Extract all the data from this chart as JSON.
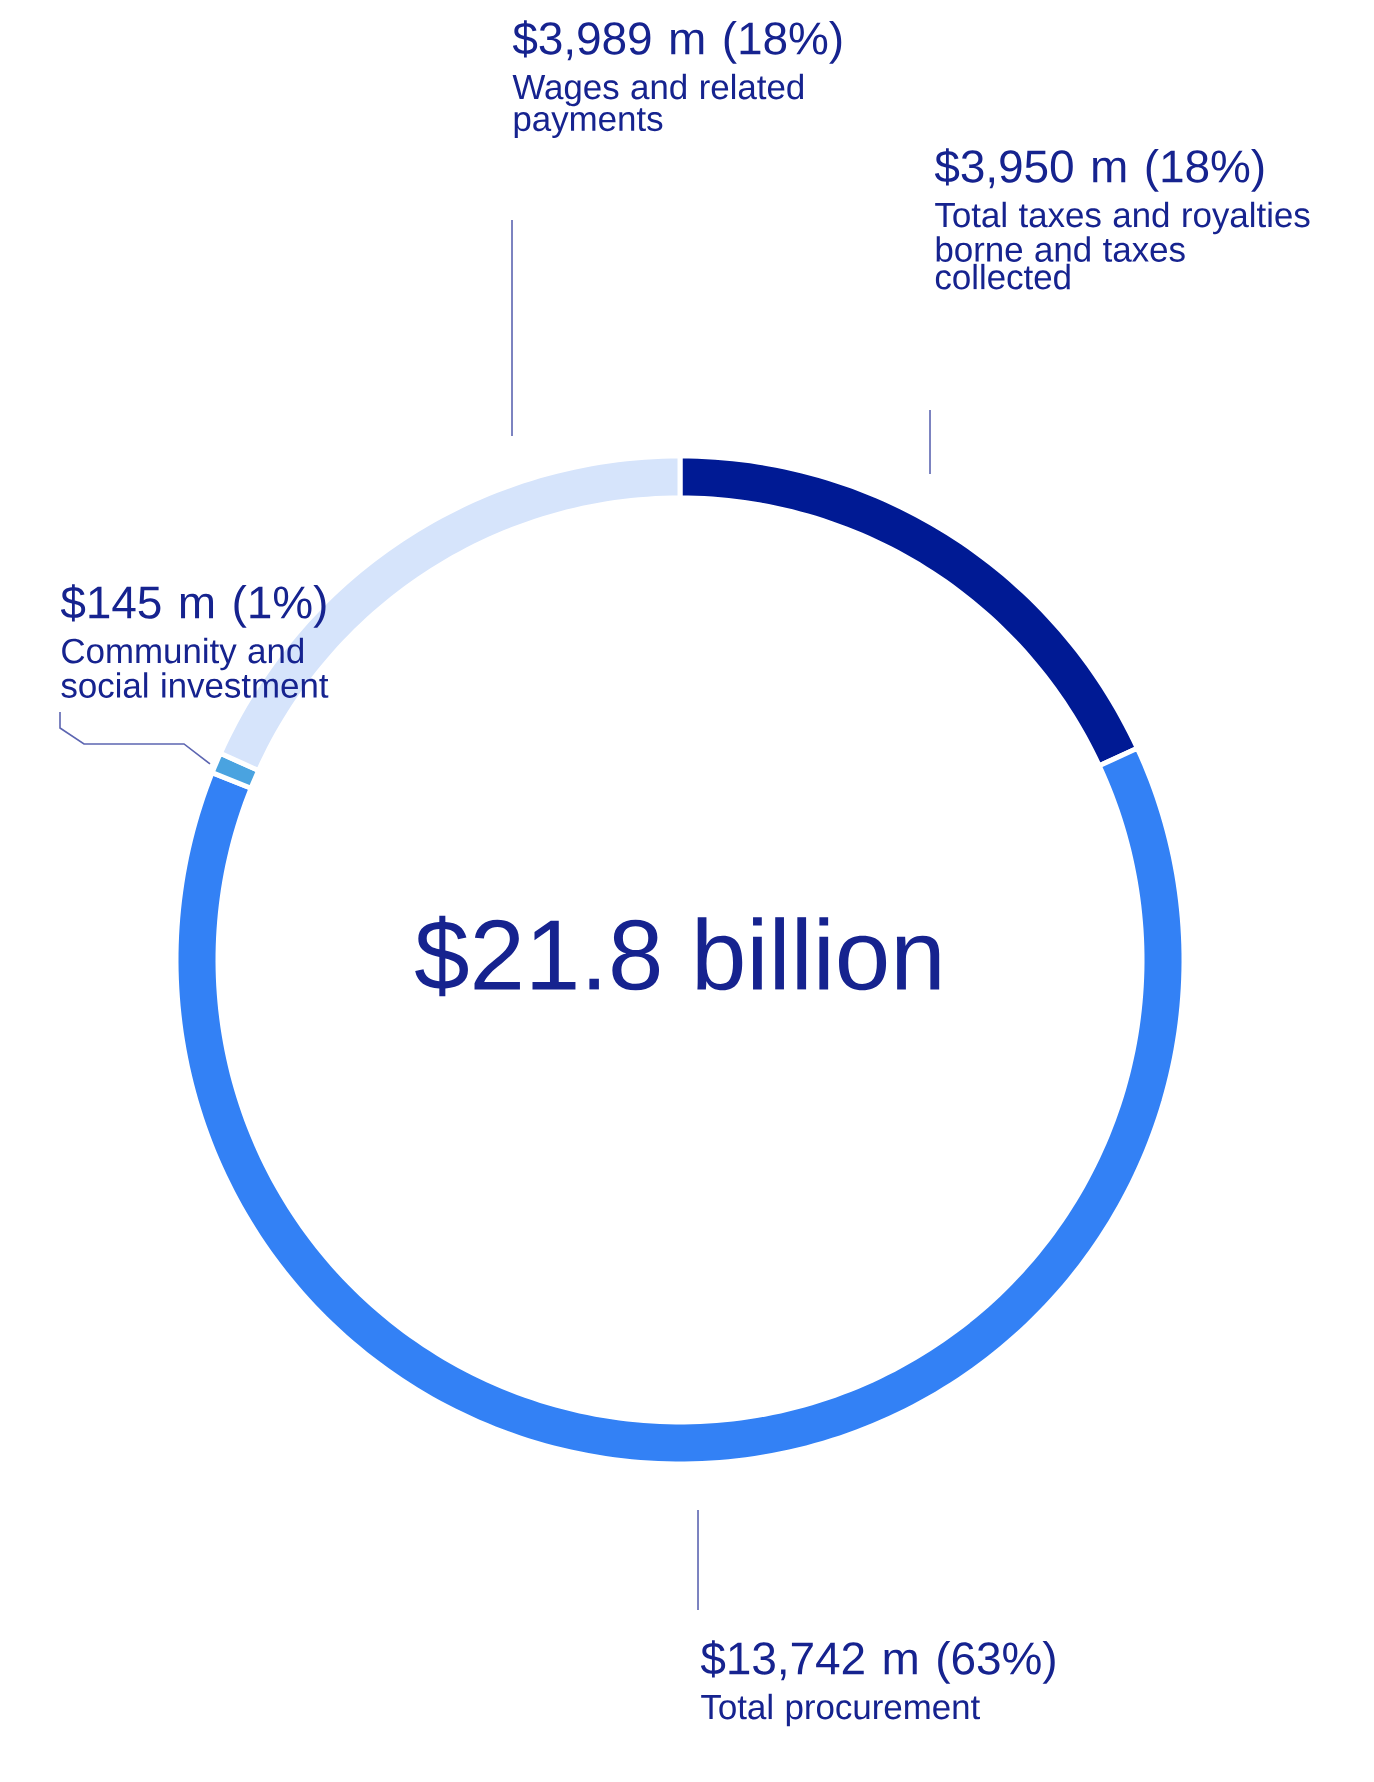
{
  "chart_data": {
    "type": "donut",
    "categories": [
      "Total taxes and royalties borne and taxes collected",
      "Total procurement",
      "Community and social investment",
      "Wages and related payments"
    ],
    "values": [
      3950,
      13742,
      145,
      3989
    ],
    "value_labels": [
      "$3,950 m (18%)",
      "$13,742 m (63%)",
      "$145 m (1%)",
      "$3,989 m (18%)"
    ],
    "colors": [
      "#001a94",
      "#3381f5",
      "#4aa3e0",
      "#d6e4fb"
    ],
    "annotations": [
      "$21.8 billion"
    ]
  }
}
